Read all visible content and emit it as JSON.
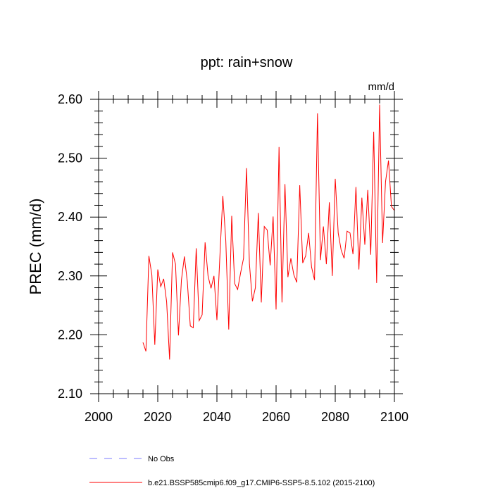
{
  "chart_data": {
    "type": "line",
    "title": "ppt: rain+snow",
    "units_label": "mm/d",
    "ylabel": "PREC  (mm/d)",
    "xlabel": "",
    "xlim": [
      2000,
      2100
    ],
    "ylim": [
      2.1,
      2.6
    ],
    "x_ticks": [
      2000,
      2020,
      2040,
      2060,
      2080,
      2100
    ],
    "y_ticks": [
      2.1,
      2.2,
      2.3,
      2.4,
      2.5,
      2.6
    ],
    "x_tick_labels": [
      "2000",
      "2020",
      "2040",
      "2060",
      "2080",
      "2100"
    ],
    "y_tick_labels": [
      "2.10",
      "2.20",
      "2.30",
      "2.40",
      "2.50",
      "2.60"
    ],
    "legend": [
      {
        "label": "No Obs",
        "color": "#7b7bff",
        "style": "dashed"
      },
      {
        "label": "b.e21.BSSP585cmip6.f09_g17.CMIP6-SSP5-8.5.102 (2015-2100)",
        "color": "#ff0000",
        "style": "solid"
      }
    ],
    "series": [
      {
        "name": "b.e21.BSSP585cmip6.f09_g17.CMIP6-SSP5-8.5.102 (2015-2100)",
        "color": "#ff0000",
        "x": [
          2015,
          2016,
          2017,
          2018,
          2019,
          2020,
          2021,
          2022,
          2023,
          2024,
          2025,
          2026,
          2027,
          2028,
          2029,
          2030,
          2031,
          2032,
          2033,
          2034,
          2035,
          2036,
          2037,
          2038,
          2039,
          2040,
          2041,
          2042,
          2043,
          2044,
          2045,
          2046,
          2047,
          2048,
          2049,
          2050,
          2051,
          2052,
          2053,
          2054,
          2055,
          2056,
          2057,
          2058,
          2059,
          2060,
          2061,
          2062,
          2063,
          2064,
          2065,
          2066,
          2067,
          2068,
          2069,
          2070,
          2071,
          2072,
          2073,
          2074,
          2075,
          2076,
          2077,
          2078,
          2079,
          2080,
          2081,
          2082,
          2083,
          2084,
          2085,
          2086,
          2087,
          2088,
          2089,
          2090,
          2091,
          2092,
          2093,
          2094,
          2095,
          2096,
          2097,
          2098,
          2099,
          2100
        ],
        "values": [
          2.187,
          2.172,
          2.334,
          2.302,
          2.183,
          2.311,
          2.282,
          2.295,
          2.256,
          2.158,
          2.34,
          2.32,
          2.199,
          2.293,
          2.333,
          2.29,
          2.215,
          2.212,
          2.347,
          2.224,
          2.234,
          2.357,
          2.3,
          2.279,
          2.3,
          2.225,
          2.333,
          2.436,
          2.36,
          2.209,
          2.402,
          2.287,
          2.277,
          2.305,
          2.33,
          2.483,
          2.32,
          2.257,
          2.28,
          2.407,
          2.255,
          2.384,
          2.378,
          2.318,
          2.401,
          2.243,
          2.519,
          2.255,
          2.456,
          2.298,
          2.33,
          2.302,
          2.289,
          2.454,
          2.322,
          2.334,
          2.373,
          2.315,
          2.293,
          2.576,
          2.327,
          2.384,
          2.32,
          2.425,
          2.3,
          2.465,
          2.373,
          2.344,
          2.33,
          2.376,
          2.373,
          2.337,
          2.451,
          2.311,
          2.433,
          2.353,
          2.446,
          2.336,
          2.545,
          2.288,
          2.591,
          2.356,
          2.46,
          2.496,
          2.418,
          2.411
        ]
      }
    ]
  }
}
